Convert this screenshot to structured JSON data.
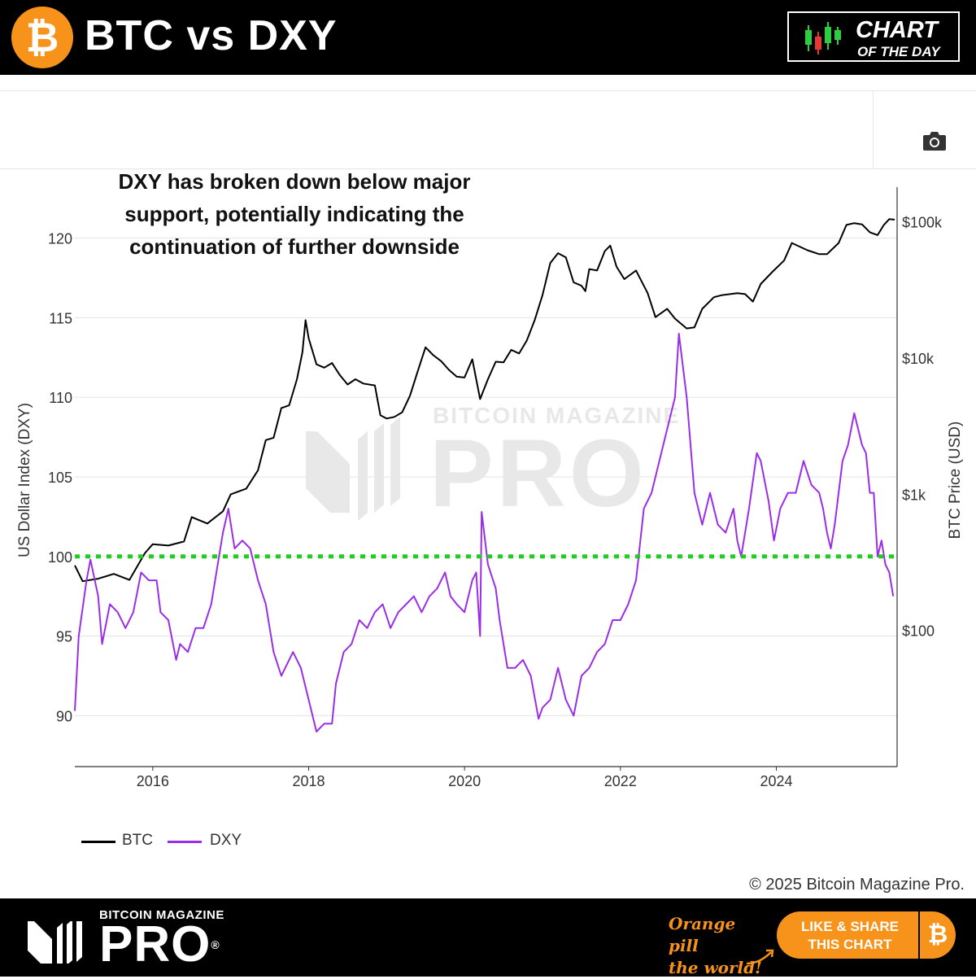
{
  "header": {
    "logo_glyph": "₿",
    "title": "BTC vs DXY",
    "badge_line1": "CHART",
    "badge_line2": "OF THE DAY"
  },
  "toolbar": {
    "camera_icon": "camera-icon"
  },
  "annotation": {
    "line1": "DXY has broken down below major",
    "line2": "support, potentially indicating the",
    "line3": "continuation of further downside"
  },
  "watermark": {
    "small": "BITCOIN MAGAZINE",
    "big": "PRO"
  },
  "chart_data": {
    "type": "line",
    "left_axis_label": "US Dollar Index (DXY)",
    "right_axis_label": "BTC Price (USD)",
    "left_ticks": [
      90,
      95,
      100,
      105,
      110,
      115,
      120
    ],
    "left_ylim": [
      86.8,
      123.2
    ],
    "right_ticks": [
      {
        "value": 100,
        "label": "$100"
      },
      {
        "value": 1000,
        "label": "$1k"
      },
      {
        "value": 10000,
        "label": "$10k"
      },
      {
        "value": 100000,
        "label": "$100k"
      }
    ],
    "right_scale": "log",
    "right_ylim": [
      10,
      180000
    ],
    "x_ticks": [
      {
        "value": 2016,
        "label": "2016"
      },
      {
        "value": 2018,
        "label": "2018"
      },
      {
        "value": 2020,
        "label": "2020"
      },
      {
        "value": 2022,
        "label": "2022"
      },
      {
        "value": 2024,
        "label": "2024"
      }
    ],
    "xlim": [
      2015.0,
      2025.55
    ],
    "support_line": {
      "value": 100,
      "color": "#22cc22",
      "style": "dotted"
    },
    "grid": true,
    "series": [
      {
        "name": "BTC",
        "axis": "right",
        "color": "#000000",
        "points": [
          [
            2015.0,
            300
          ],
          [
            2015.1,
            230
          ],
          [
            2015.3,
            240
          ],
          [
            2015.5,
            260
          ],
          [
            2015.7,
            235
          ],
          [
            2015.9,
            370
          ],
          [
            2016.0,
            430
          ],
          [
            2016.2,
            420
          ],
          [
            2016.4,
            450
          ],
          [
            2016.5,
            680
          ],
          [
            2016.7,
            610
          ],
          [
            2016.9,
            750
          ],
          [
            2017.0,
            1000
          ],
          [
            2017.2,
            1100
          ],
          [
            2017.35,
            1500
          ],
          [
            2017.45,
            2500
          ],
          [
            2017.55,
            2600
          ],
          [
            2017.65,
            4300
          ],
          [
            2017.75,
            4500
          ],
          [
            2017.85,
            7000
          ],
          [
            2017.92,
            11000
          ],
          [
            2017.96,
            19000
          ],
          [
            2018.0,
            14000
          ],
          [
            2018.1,
            9000
          ],
          [
            2018.2,
            8500
          ],
          [
            2018.3,
            9200
          ],
          [
            2018.4,
            7500
          ],
          [
            2018.5,
            6400
          ],
          [
            2018.6,
            7000
          ],
          [
            2018.7,
            6500
          ],
          [
            2018.85,
            6300
          ],
          [
            2018.92,
            3800
          ],
          [
            2019.0,
            3600
          ],
          [
            2019.1,
            3700
          ],
          [
            2019.2,
            4000
          ],
          [
            2019.3,
            5300
          ],
          [
            2019.4,
            8000
          ],
          [
            2019.5,
            12000
          ],
          [
            2019.6,
            10500
          ],
          [
            2019.7,
            9500
          ],
          [
            2019.8,
            8200
          ],
          [
            2019.9,
            7300
          ],
          [
            2020.0,
            7200
          ],
          [
            2020.1,
            9800
          ],
          [
            2020.2,
            5000
          ],
          [
            2020.3,
            7000
          ],
          [
            2020.4,
            9400
          ],
          [
            2020.5,
            9300
          ],
          [
            2020.6,
            11500
          ],
          [
            2020.7,
            10800
          ],
          [
            2020.8,
            13500
          ],
          [
            2020.9,
            19000
          ],
          [
            2021.0,
            29000
          ],
          [
            2021.1,
            50000
          ],
          [
            2021.2,
            59000
          ],
          [
            2021.3,
            55000
          ],
          [
            2021.4,
            36000
          ],
          [
            2021.5,
            34000
          ],
          [
            2021.55,
            31000
          ],
          [
            2021.6,
            45000
          ],
          [
            2021.7,
            44000
          ],
          [
            2021.8,
            61000
          ],
          [
            2021.87,
            67000
          ],
          [
            2021.95,
            47000
          ],
          [
            2022.05,
            38000
          ],
          [
            2022.2,
            44000
          ],
          [
            2022.35,
            30000
          ],
          [
            2022.45,
            20000
          ],
          [
            2022.6,
            23000
          ],
          [
            2022.7,
            19500
          ],
          [
            2022.85,
            16500
          ],
          [
            2022.95,
            16800
          ],
          [
            2023.05,
            23000
          ],
          [
            2023.2,
            28000
          ],
          [
            2023.3,
            29000
          ],
          [
            2023.5,
            30000
          ],
          [
            2023.6,
            29500
          ],
          [
            2023.7,
            26000
          ],
          [
            2023.8,
            35000
          ],
          [
            2023.95,
            43000
          ],
          [
            2024.1,
            52000
          ],
          [
            2024.2,
            70000
          ],
          [
            2024.4,
            62000
          ],
          [
            2024.55,
            58000
          ],
          [
            2024.65,
            58000
          ],
          [
            2024.8,
            70000
          ],
          [
            2024.9,
            95000
          ],
          [
            2025.0,
            98000
          ],
          [
            2025.1,
            96000
          ],
          [
            2025.2,
            84000
          ],
          [
            2025.3,
            80000
          ],
          [
            2025.38,
            95000
          ],
          [
            2025.45,
            105000
          ],
          [
            2025.52,
            104000
          ]
        ]
      },
      {
        "name": "DXY",
        "axis": "left",
        "color": "#9a2ee8",
        "points": [
          [
            2015.0,
            90.3
          ],
          [
            2015.05,
            95.0
          ],
          [
            2015.15,
            98.5
          ],
          [
            2015.2,
            99.8
          ],
          [
            2015.3,
            97.5
          ],
          [
            2015.35,
            94.5
          ],
          [
            2015.45,
            97.0
          ],
          [
            2015.55,
            96.5
          ],
          [
            2015.65,
            95.5
          ],
          [
            2015.75,
            96.5
          ],
          [
            2015.85,
            99.0
          ],
          [
            2015.95,
            98.5
          ],
          [
            2016.05,
            98.5
          ],
          [
            2016.1,
            96.5
          ],
          [
            2016.2,
            96.0
          ],
          [
            2016.3,
            93.5
          ],
          [
            2016.35,
            94.5
          ],
          [
            2016.45,
            94.0
          ],
          [
            2016.55,
            95.5
          ],
          [
            2016.65,
            95.5
          ],
          [
            2016.75,
            97.0
          ],
          [
            2016.8,
            98.5
          ],
          [
            2016.9,
            101.5
          ],
          [
            2016.97,
            103.0
          ],
          [
            2017.05,
            100.5
          ],
          [
            2017.15,
            101.0
          ],
          [
            2017.25,
            100.5
          ],
          [
            2017.35,
            98.5
          ],
          [
            2017.45,
            97.0
          ],
          [
            2017.55,
            94.0
          ],
          [
            2017.65,
            92.5
          ],
          [
            2017.7,
            93.0
          ],
          [
            2017.8,
            94.0
          ],
          [
            2017.9,
            93.0
          ],
          [
            2018.0,
            91.0
          ],
          [
            2018.1,
            89.0
          ],
          [
            2018.2,
            89.5
          ],
          [
            2018.3,
            89.5
          ],
          [
            2018.35,
            92.0
          ],
          [
            2018.45,
            94.0
          ],
          [
            2018.55,
            94.5
          ],
          [
            2018.65,
            96.0
          ],
          [
            2018.75,
            95.5
          ],
          [
            2018.85,
            96.5
          ],
          [
            2018.95,
            97.0
          ],
          [
            2019.05,
            95.5
          ],
          [
            2019.15,
            96.5
          ],
          [
            2019.25,
            97.0
          ],
          [
            2019.35,
            97.5
          ],
          [
            2019.45,
            96.5
          ],
          [
            2019.55,
            97.5
          ],
          [
            2019.65,
            98.0
          ],
          [
            2019.75,
            99.0
          ],
          [
            2019.82,
            97.5
          ],
          [
            2019.9,
            97.0
          ],
          [
            2020.0,
            96.5
          ],
          [
            2020.1,
            98.5
          ],
          [
            2020.15,
            99.0
          ],
          [
            2020.2,
            95.0
          ],
          [
            2020.22,
            102.8
          ],
          [
            2020.3,
            99.5
          ],
          [
            2020.4,
            98.0
          ],
          [
            2020.45,
            96.0
          ],
          [
            2020.55,
            93.0
          ],
          [
            2020.65,
            93.0
          ],
          [
            2020.75,
            93.5
          ],
          [
            2020.85,
            92.5
          ],
          [
            2020.95,
            89.8
          ],
          [
            2021.0,
            90.5
          ],
          [
            2021.1,
            91.0
          ],
          [
            2021.2,
            93.0
          ],
          [
            2021.3,
            91.0
          ],
          [
            2021.4,
            90.0
          ],
          [
            2021.5,
            92.5
          ],
          [
            2021.6,
            93.0
          ],
          [
            2021.7,
            94.0
          ],
          [
            2021.8,
            94.5
          ],
          [
            2021.9,
            96.0
          ],
          [
            2022.0,
            96.0
          ],
          [
            2022.1,
            97.0
          ],
          [
            2022.2,
            98.5
          ],
          [
            2022.3,
            103.0
          ],
          [
            2022.4,
            104.0
          ],
          [
            2022.5,
            106.0
          ],
          [
            2022.6,
            108.0
          ],
          [
            2022.7,
            110.0
          ],
          [
            2022.75,
            114.0
          ],
          [
            2022.8,
            112.0
          ],
          [
            2022.85,
            110.0
          ],
          [
            2022.95,
            104.0
          ],
          [
            2023.05,
            102.0
          ],
          [
            2023.15,
            104.0
          ],
          [
            2023.25,
            102.0
          ],
          [
            2023.35,
            101.5
          ],
          [
            2023.45,
            103.0
          ],
          [
            2023.5,
            101.0
          ],
          [
            2023.55,
            100.0
          ],
          [
            2023.65,
            103.0
          ],
          [
            2023.75,
            106.5
          ],
          [
            2023.8,
            106.0
          ],
          [
            2023.9,
            103.5
          ],
          [
            2023.97,
            101.0
          ],
          [
            2024.05,
            103.0
          ],
          [
            2024.15,
            104.0
          ],
          [
            2024.25,
            104.0
          ],
          [
            2024.35,
            106.0
          ],
          [
            2024.45,
            104.5
          ],
          [
            2024.55,
            104.0
          ],
          [
            2024.6,
            103.0
          ],
          [
            2024.65,
            101.5
          ],
          [
            2024.7,
            100.5
          ],
          [
            2024.75,
            102.0
          ],
          [
            2024.8,
            104.0
          ],
          [
            2024.85,
            106.0
          ],
          [
            2024.92,
            107.0
          ],
          [
            2025.0,
            109.0
          ],
          [
            2025.05,
            108.0
          ],
          [
            2025.1,
            107.0
          ],
          [
            2025.15,
            106.5
          ],
          [
            2025.2,
            104.0
          ],
          [
            2025.25,
            104.0
          ],
          [
            2025.3,
            100.0
          ],
          [
            2025.35,
            101.0
          ],
          [
            2025.4,
            99.5
          ],
          [
            2025.45,
            99.0
          ],
          [
            2025.5,
            97.5
          ]
        ]
      }
    ]
  },
  "legend": {
    "btc_label": "BTC",
    "dxy_label": "DXY"
  },
  "copyright": "© 2025 Bitcoin Magazine Pro.",
  "footer": {
    "brand_small": "BITCOIN MAGAZINE",
    "brand_big": "PRO",
    "brand_reg": "®",
    "tagline_line1": "Orange pill",
    "tagline_line2": "the world!",
    "share_line1": "LIKE & SHARE",
    "share_line2": "THIS CHART",
    "share_glyph": "₿"
  },
  "colors": {
    "bitcoin_orange": "#f7931a",
    "btc_line": "#000000",
    "dxy_line": "#9a2ee8",
    "support": "#22cc22"
  }
}
